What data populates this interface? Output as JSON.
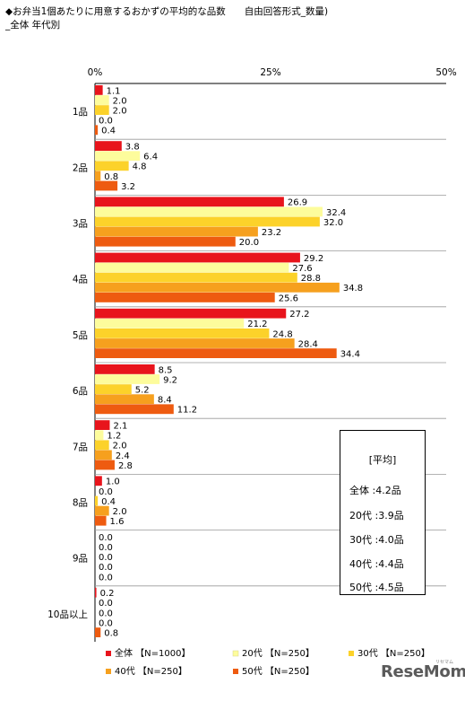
{
  "title": {
    "line1": "◆お弁当1個あたりに用意するおかずの平均的な品数　　自由回答形式_数量)",
    "line2": "_全体 年代別"
  },
  "chart_data": {
    "type": "bar",
    "orientation": "horizontal",
    "unit": "%",
    "xlim": [
      0,
      50
    ],
    "x_ticks": [
      "0%",
      "25%",
      "50%"
    ],
    "grid": false,
    "legend_position": "bottom",
    "categories": [
      "1品",
      "2品",
      "3品",
      "4品",
      "5品",
      "6品",
      "7品",
      "8品",
      "9品",
      "10品以上"
    ],
    "series": [
      {
        "name": "全体 【N=1000】",
        "color": "#e8141c",
        "values": [
          1.1,
          3.8,
          26.9,
          29.2,
          27.2,
          8.5,
          2.1,
          1.0,
          0.0,
          0.2
        ]
      },
      {
        "name": "20代 【N=250】",
        "color": "#fdfc9c",
        "values": [
          2.0,
          6.4,
          32.4,
          27.6,
          21.2,
          9.2,
          1.2,
          0.0,
          0.0,
          0.0
        ]
      },
      {
        "name": "30代 【N=250】",
        "color": "#fcd22a",
        "values": [
          2.0,
          4.8,
          32.0,
          28.8,
          24.8,
          5.2,
          2.0,
          0.4,
          0.0,
          0.0
        ]
      },
      {
        "name": "40代 【N=250】",
        "color": "#f6a01e",
        "values": [
          0.0,
          0.8,
          23.2,
          34.8,
          28.4,
          8.4,
          2.4,
          2.0,
          0.0,
          0.0
        ]
      },
      {
        "name": "50代 【N=250】",
        "color": "#ee5b10",
        "values": [
          0.4,
          3.2,
          20.0,
          25.6,
          34.4,
          11.2,
          2.8,
          1.6,
          0.0,
          0.8
        ]
      }
    ],
    "averages": {
      "title": "[平均]",
      "rows": [
        "全体 :4.2品",
        "20代 :3.9品",
        "30代 :4.0品",
        "40代 :4.4品",
        "50代 :4.5品"
      ]
    }
  },
  "logo": {
    "text": "ReseMom",
    "sub": "リセマム"
  }
}
